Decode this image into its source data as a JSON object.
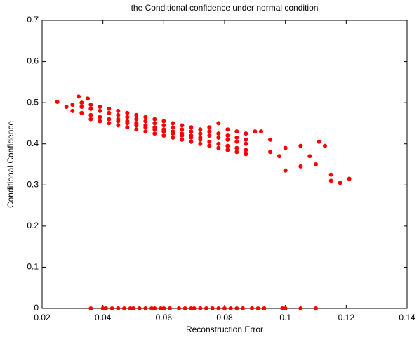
{
  "chart_data": {
    "type": "scatter",
    "title": "the Conditional confidence under normal condition",
    "x_label": "Reconstruction Error",
    "y_label": "Conditional Confidence",
    "color": "#ff0000",
    "xlim": [
      0.02,
      0.14
    ],
    "xticks": [
      0.02,
      0.04,
      0.06,
      0.08,
      0.1,
      0.12,
      0.14
    ],
    "ylim": [
      0,
      0.7
    ],
    "yticks": [
      0,
      0.1,
      0.2,
      0.3,
      0.4,
      0.5,
      0.6,
      0.7
    ],
    "x": [
      0.025,
      0.032,
      0.035,
      0.095,
      0.1,
      0.1,
      0.105,
      0.105,
      0.108,
      0.11,
      0.111,
      0.113,
      0.115,
      0.115,
      0.118,
      0.121,
      0.09,
      0.092,
      0.095,
      0.098,
      0.028,
      0.03,
      0.03,
      0.033,
      0.033,
      0.033,
      0.036,
      0.036,
      0.036,
      0.036,
      0.039,
      0.039,
      0.039,
      0.039,
      0.042,
      0.042,
      0.042,
      0.042,
      0.045,
      0.045,
      0.045,
      0.045,
      0.045,
      0.048,
      0.048,
      0.048,
      0.048,
      0.048,
      0.051,
      0.051,
      0.051,
      0.051,
      0.051,
      0.054,
      0.054,
      0.054,
      0.054,
      0.054,
      0.057,
      0.057,
      0.057,
      0.057,
      0.057,
      0.06,
      0.06,
      0.06,
      0.06,
      0.06,
      0.063,
      0.063,
      0.063,
      0.063,
      0.063,
      0.066,
      0.066,
      0.066,
      0.066,
      0.066,
      0.069,
      0.069,
      0.069,
      0.069,
      0.069,
      0.072,
      0.072,
      0.072,
      0.072,
      0.072,
      0.075,
      0.075,
      0.075,
      0.075,
      0.075,
      0.078,
      0.078,
      0.078,
      0.078,
      0.078,
      0.081,
      0.081,
      0.081,
      0.081,
      0.081,
      0.084,
      0.084,
      0.084,
      0.084,
      0.084,
      0.087,
      0.087,
      0.087,
      0.087,
      0.087,
      0.036,
      0.04,
      0.041,
      0.043,
      0.045,
      0.047,
      0.049,
      0.05,
      0.052,
      0.054,
      0.056,
      0.057,
      0.059,
      0.06,
      0.062,
      0.065,
      0.067,
      0.069,
      0.07,
      0.072,
      0.074,
      0.076,
      0.078,
      0.08,
      0.082,
      0.084,
      0.086,
      0.089,
      0.091,
      0.093,
      0.099,
      0.1,
      0.105,
      0.11
    ],
    "values": [
      0.502,
      0.515,
      0.51,
      0.41,
      0.39,
      0.335,
      0.395,
      0.345,
      0.37,
      0.35,
      0.405,
      0.395,
      0.325,
      0.31,
      0.305,
      0.315,
      0.43,
      0.43,
      0.38,
      0.37,
      0.49,
      0.495,
      0.48,
      0.49,
      0.475,
      0.5,
      0.485,
      0.47,
      0.495,
      0.46,
      0.48,
      0.465,
      0.49,
      0.455,
      0.475,
      0.46,
      0.485,
      0.45,
      0.47,
      0.455,
      0.48,
      0.445,
      0.46,
      0.465,
      0.45,
      0.475,
      0.44,
      0.455,
      0.46,
      0.445,
      0.47,
      0.435,
      0.45,
      0.455,
      0.44,
      0.465,
      0.43,
      0.445,
      0.45,
      0.435,
      0.46,
      0.425,
      0.44,
      0.445,
      0.43,
      0.455,
      0.42,
      0.435,
      0.44,
      0.425,
      0.45,
      0.415,
      0.43,
      0.435,
      0.42,
      0.445,
      0.41,
      0.425,
      0.43,
      0.415,
      0.44,
      0.405,
      0.42,
      0.425,
      0.41,
      0.435,
      0.4,
      0.415,
      0.42,
      0.405,
      0.43,
      0.395,
      0.44,
      0.415,
      0.4,
      0.425,
      0.39,
      0.45,
      0.41,
      0.395,
      0.42,
      0.385,
      0.435,
      0.405,
      0.39,
      0.415,
      0.38,
      0.43,
      0.4,
      0.385,
      0.41,
      0.375,
      0.425,
      0,
      0,
      0,
      0,
      0,
      0,
      0,
      0,
      0,
      0,
      0,
      0,
      0,
      0,
      0,
      0,
      0,
      0,
      0,
      0,
      0,
      0,
      0,
      0,
      0,
      0,
      0,
      0,
      0,
      0,
      0,
      0,
      0,
      0
    ]
  }
}
